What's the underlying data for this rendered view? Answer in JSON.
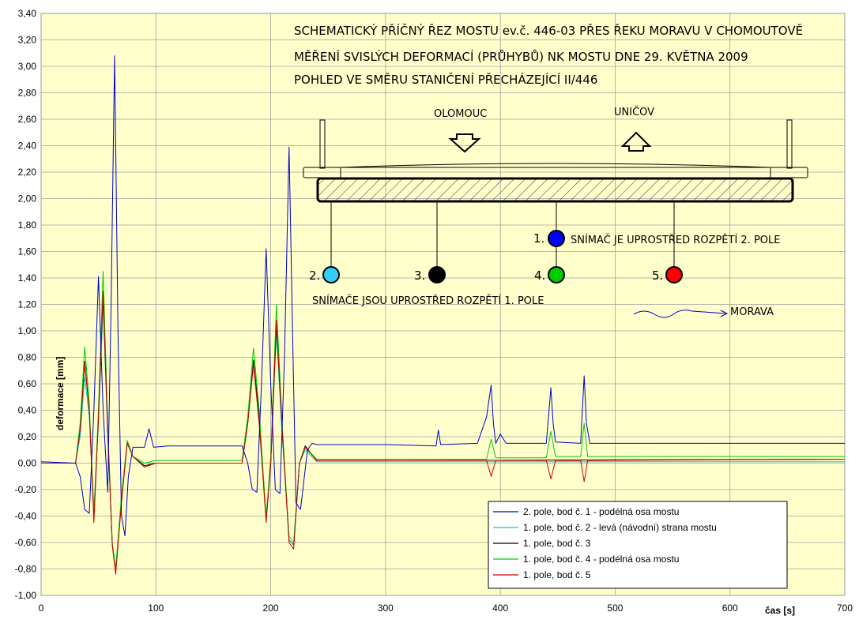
{
  "colors": {
    "plot_bg": "#ffffcc",
    "grid": "#a0a0a0",
    "series_blue": "#0000cc",
    "series_cyan": "#00cccc",
    "series_black": "#000000",
    "series_green": "#00cc00",
    "series_red": "#cc0000"
  },
  "diagram": {
    "title_lines": [
      "SCHEMATICKÝ PŘÍČNÝ ŘEZ MOSTU ev.č. 446-03 PŘES ŘEKU MORAVU V CHOMOUTOVĚ",
      "MĚŘENÍ SVISLÝCH DEFORMACÍ (PRŮHYBŮ) NK MOSTU DNE 29. KVĚTNA 2009",
      "POHLED VE SMĚRU STANIČENÍ PŘECHÁZEJÍCÍ II/446"
    ],
    "olomouc_label": "OLOMOUC",
    "unicov_label": "UNIČOV",
    "sensor_labels": [
      "1.",
      "2.",
      "3.",
      "4.",
      "5."
    ],
    "sensor_colors": [
      "#0000ff",
      "#33ccff",
      "#000000",
      "#00cc00",
      "#ff0000"
    ],
    "sensor1_note": "SNÍMAČ JE UPROSTŘED ROZPĚTÍ 2. POLE",
    "sensors_note": "SNÍMAČE JSOU UPROSTŘED ROZPĚTÍ 1. POLE",
    "river_label": "MORAVA"
  },
  "chart_data": {
    "type": "line",
    "xlabel": "čas [s]",
    "ylabel": "deformace [mm]",
    "xlim": [
      0,
      700
    ],
    "ylim": [
      -1.0,
      3.4
    ],
    "x_ticks": [
      0,
      100,
      200,
      300,
      400,
      500,
      600,
      700
    ],
    "y_ticks": [
      "-1,00",
      "-0,80",
      "-0,60",
      "-0,40",
      "-0,20",
      "0,00",
      "0,20",
      "0,40",
      "0,60",
      "0,80",
      "1,00",
      "1,20",
      "1,40",
      "1,60",
      "1,80",
      "2,00",
      "2,20",
      "2,40",
      "2,60",
      "2,80",
      "3,00",
      "3,20",
      "3,40"
    ],
    "grid": true,
    "legend_position": "bottom-right",
    "series": [
      {
        "name": "2. pole, bod č. 1 - podélná osa mostu",
        "color": "#0000cc",
        "x": [
          0,
          30,
          34,
          38,
          42,
          46,
          50,
          54,
          58,
          61,
          64,
          67,
          70,
          73,
          76,
          80,
          90,
          94,
          98,
          110,
          175,
          180,
          184,
          188,
          192,
          196,
          200,
          204,
          208,
          212,
          216,
          219,
          222,
          226,
          232,
          236,
          240,
          300,
          344,
          346,
          348,
          380,
          388,
          392,
          394,
          396,
          400,
          405,
          440,
          444,
          446,
          448,
          470,
          473,
          475,
          478,
          550,
          700
        ],
        "y": [
          0.01,
          0.0,
          -0.1,
          -0.35,
          -0.38,
          0.4,
          1.41,
          0.4,
          -0.22,
          1.2,
          3.08,
          1.0,
          -0.4,
          -0.55,
          -0.1,
          0.12,
          0.12,
          0.26,
          0.12,
          0.13,
          0.13,
          0.0,
          -0.2,
          -0.22,
          0.6,
          1.62,
          0.6,
          -0.2,
          -0.23,
          0.8,
          2.39,
          1.0,
          -0.3,
          -0.35,
          0.1,
          0.15,
          0.14,
          0.14,
          0.13,
          0.25,
          0.14,
          0.15,
          0.35,
          0.59,
          0.3,
          0.15,
          0.22,
          0.15,
          0.15,
          0.57,
          0.3,
          0.16,
          0.15,
          0.66,
          0.3,
          0.15,
          0.15,
          0.15
        ]
      },
      {
        "name": "1. pole, bod č. 2 - levá (návodní) strana mostu",
        "color": "#00cccc",
        "x": [
          0,
          30,
          34,
          38,
          42,
          46,
          50,
          54,
          58,
          62,
          65,
          70,
          75,
          80,
          90,
          100,
          175,
          180,
          185,
          190,
          196,
          200,
          205,
          210,
          216,
          220,
          225,
          230,
          240,
          300,
          700
        ],
        "y": [
          0.0,
          0.0,
          0.2,
          0.65,
          0.35,
          -0.35,
          0.3,
          1.2,
          0.2,
          -0.6,
          -0.8,
          -0.25,
          0.15,
          0.05,
          0.0,
          0.0,
          0.0,
          0.3,
          0.75,
          0.3,
          -0.4,
          0.0,
          1.0,
          0.2,
          -0.55,
          -0.6,
          0.0,
          0.1,
          0.01,
          0.01,
          0.01
        ]
      },
      {
        "name": "1. pole, bod č. 3",
        "color": "#000000",
        "x": [
          0,
          30,
          34,
          38,
          42,
          46,
          50,
          54,
          58,
          62,
          65,
          70,
          75,
          80,
          90,
          100,
          175,
          180,
          185,
          190,
          196,
          200,
          205,
          210,
          216,
          220,
          225,
          230,
          240,
          300,
          700
        ],
        "y": [
          0.0,
          0.0,
          0.25,
          0.77,
          0.4,
          -0.42,
          0.35,
          1.28,
          0.25,
          -0.62,
          -0.82,
          -0.28,
          0.17,
          0.05,
          -0.02,
          0.0,
          0.0,
          0.3,
          0.78,
          0.35,
          -0.42,
          0.0,
          1.05,
          0.25,
          -0.58,
          -0.62,
          0.0,
          0.13,
          0.02,
          0.02,
          0.03
        ]
      },
      {
        "name": "1. pole, bod č. 4 - podélná osa mostu",
        "color": "#00cc00",
        "x": [
          0,
          30,
          34,
          38,
          42,
          46,
          50,
          54,
          58,
          62,
          65,
          70,
          75,
          80,
          90,
          100,
          175,
          180,
          185,
          190,
          196,
          200,
          205,
          210,
          216,
          220,
          225,
          230,
          240,
          300,
          388,
          392,
          396,
          440,
          444,
          448,
          470,
          473,
          476,
          700
        ],
        "y": [
          0.0,
          0.0,
          0.3,
          0.88,
          0.45,
          -0.4,
          0.4,
          1.45,
          0.3,
          -0.62,
          -0.8,
          -0.25,
          0.17,
          0.05,
          0.0,
          0.02,
          0.02,
          0.35,
          0.87,
          0.4,
          -0.42,
          0.05,
          1.2,
          0.3,
          -0.58,
          -0.62,
          0.0,
          0.12,
          0.03,
          0.03,
          0.03,
          0.18,
          0.04,
          0.04,
          0.24,
          0.05,
          0.05,
          0.3,
          0.05,
          0.05
        ]
      },
      {
        "name": "1. pole, bod č. 5",
        "color": "#cc0000",
        "x": [
          0,
          30,
          34,
          38,
          42,
          46,
          50,
          54,
          58,
          62,
          65,
          70,
          75,
          80,
          90,
          100,
          175,
          180,
          185,
          190,
          196,
          200,
          205,
          210,
          216,
          220,
          225,
          230,
          240,
          300,
          388,
          392,
          396,
          440,
          444,
          448,
          470,
          473,
          476,
          700
        ],
        "y": [
          0.0,
          0.0,
          0.25,
          0.75,
          0.4,
          -0.45,
          0.35,
          1.3,
          0.25,
          -0.62,
          -0.84,
          -0.3,
          0.15,
          0.05,
          -0.03,
          0.0,
          0.0,
          0.3,
          0.75,
          0.3,
          -0.45,
          0.0,
          1.08,
          0.25,
          -0.6,
          -0.65,
          0.0,
          0.12,
          0.02,
          0.02,
          0.02,
          -0.1,
          0.02,
          0.02,
          -0.12,
          0.02,
          0.02,
          -0.14,
          0.02,
          0.03
        ]
      }
    ]
  }
}
